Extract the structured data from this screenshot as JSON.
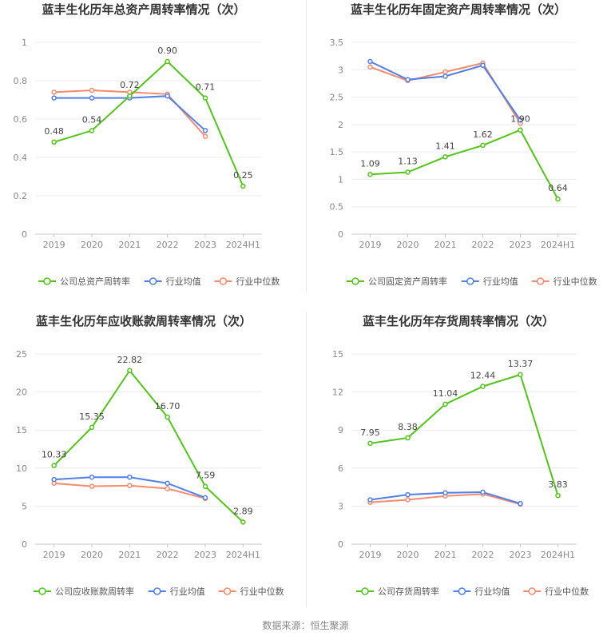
{
  "colors": {
    "company": "#52c41a",
    "avg": "#4f7fe8",
    "median": "#f58b6c",
    "grid": "#ececec",
    "axis": "#c8c8c8",
    "tick": "#888888",
    "label": "#444444",
    "title": "#333333"
  },
  "legend": {
    "company_labels": [
      "公司总资产周转率",
      "公司固定资产周转率",
      "公司应收账款周转率",
      "公司存货周转率"
    ],
    "avg": "行业均值",
    "median": "行业中位数"
  },
  "source": "数据来源：恒生聚源",
  "chart_data": [
    {
      "type": "line",
      "title": "蓝丰生化历年总资产周转率情况（次）",
      "categories": [
        "2019",
        "2020",
        "2021",
        "2022",
        "2023",
        "2024H1"
      ],
      "ylim": [
        0,
        1
      ],
      "yticks": [
        "0",
        "0.2",
        "0.4",
        "0.6",
        "0.8",
        "1"
      ],
      "series": [
        {
          "name": "公司总资产周转率",
          "values": [
            0.48,
            0.54,
            0.72,
            0.9,
            0.71,
            0.25
          ],
          "labels": [
            "0.48",
            "0.54",
            "0.72",
            "0.90",
            "0.71",
            "0.25"
          ]
        },
        {
          "name": "行业均值",
          "values": [
            0.71,
            0.71,
            0.71,
            0.72,
            0.54,
            null
          ]
        },
        {
          "name": "行业中位数",
          "values": [
            0.74,
            0.75,
            0.74,
            0.73,
            0.51,
            null
          ]
        }
      ],
      "grid": true,
      "legend_position": "bottom"
    },
    {
      "type": "line",
      "title": "蓝丰生化历年固定资产周转率情况（次）",
      "categories": [
        "2019",
        "2020",
        "2021",
        "2022",
        "2023",
        "2024H1"
      ],
      "ylim": [
        0,
        3.5
      ],
      "yticks": [
        "0",
        "0.5",
        "1",
        "1.5",
        "2",
        "2.5",
        "3",
        "3.5"
      ],
      "series": [
        {
          "name": "公司固定资产周转率",
          "values": [
            1.09,
            1.13,
            1.41,
            1.62,
            1.9,
            0.64
          ],
          "labels": [
            "1.09",
            "1.13",
            "1.41",
            "1.62",
            "1.90",
            "0.64"
          ]
        },
        {
          "name": "行业均值",
          "values": [
            3.15,
            2.82,
            2.88,
            3.08,
            2.08,
            null
          ]
        },
        {
          "name": "行业中位数",
          "values": [
            3.05,
            2.8,
            2.96,
            3.12,
            2.02,
            null
          ]
        }
      ],
      "grid": true,
      "legend_position": "bottom"
    },
    {
      "type": "line",
      "title": "蓝丰生化历年应收账款周转率情况（次）",
      "categories": [
        "2019",
        "2020",
        "2021",
        "2022",
        "2023",
        "2024H1"
      ],
      "ylim": [
        0,
        25
      ],
      "yticks": [
        "0",
        "5",
        "10",
        "15",
        "20",
        "25"
      ],
      "series": [
        {
          "name": "公司应收账款周转率",
          "values": [
            10.33,
            15.35,
            22.82,
            16.7,
            7.59,
            2.89
          ],
          "labels": [
            "10.33",
            "15.35",
            "22.82",
            "16.70",
            "7.59",
            "2.89"
          ]
        },
        {
          "name": "行业均值",
          "values": [
            8.5,
            8.8,
            8.8,
            8.0,
            6.1,
            null
          ]
        },
        {
          "name": "行业中位数",
          "values": [
            8.0,
            7.6,
            7.7,
            7.3,
            6.0,
            null
          ]
        }
      ],
      "grid": true,
      "legend_position": "bottom"
    },
    {
      "type": "line",
      "title": "蓝丰生化历年存货周转率情况（次）",
      "categories": [
        "2019",
        "2020",
        "2021",
        "2022",
        "2023",
        "2024H1"
      ],
      "ylim": [
        0,
        15
      ],
      "yticks": [
        "0",
        "3",
        "6",
        "9",
        "12",
        "15"
      ],
      "series": [
        {
          "name": "公司存货周转率",
          "values": [
            7.95,
            8.38,
            11.04,
            12.44,
            13.37,
            3.83
          ],
          "labels": [
            "7.95",
            "8.38",
            "11.04",
            "12.44",
            "13.37",
            "3.83"
          ]
        },
        {
          "name": "行业均值",
          "values": [
            3.5,
            3.9,
            4.05,
            4.1,
            3.2,
            null
          ]
        },
        {
          "name": "行业中位数",
          "values": [
            3.3,
            3.5,
            3.8,
            3.95,
            3.15,
            null
          ]
        }
      ],
      "grid": true,
      "legend_position": "bottom"
    }
  ]
}
